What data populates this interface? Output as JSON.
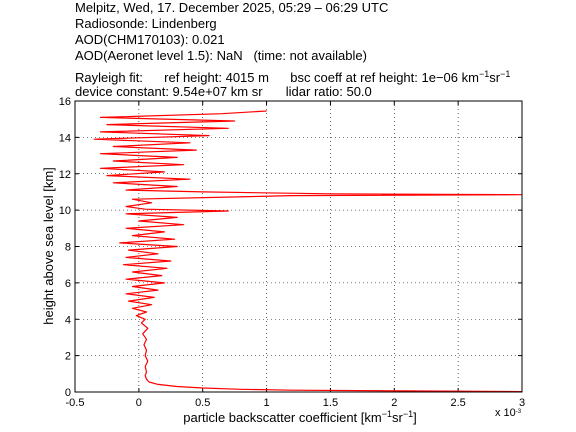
{
  "header": {
    "line1": "Melpitz, Wed, 17. December 2025, 05:29 – 06:29 UTC",
    "line2": "Radiosonde: Lindenberg",
    "line3": "AOD(CHM170103): 0.021",
    "line4": "AOD(Aeronet level 1.5): NaN   (time: not available)",
    "rayleigh_label": "Rayleigh fit:",
    "ref_height": "ref height: 4015 m",
    "bsc_coeff_prefix": "bsc coeff at ref height: 1e−06 km",
    "unit_sup1": "−1",
    "unit_sr": "sr",
    "unit_sup2": "−1",
    "device_constant": "device constant: 9.54e+07 km sr",
    "lidar_ratio": "lidar ratio: 50.0"
  },
  "chart_data": {
    "type": "line",
    "title": "",
    "xlabel_prefix": "particle backscatter coefficient [km",
    "xlabel_sup1": "−1",
    "xlabel_mid": "sr",
    "xlabel_sup2": "−1",
    "xlabel_suffix": "]",
    "x_multiplier_label": "x 10",
    "x_multiplier_exp": "-3",
    "ylabel": "height above sea level [km]",
    "xlim": [
      -0.5,
      3
    ],
    "ylim": [
      0,
      16
    ],
    "x_ticks": [
      "-0.5",
      "0",
      "0.5",
      "1",
      "1.5",
      "2",
      "2.5",
      "3"
    ],
    "y_ticks": [
      "0",
      "2",
      "4",
      "6",
      "8",
      "10",
      "12",
      "14",
      "16"
    ],
    "grid": true,
    "line_color": "#ff0000",
    "series": [
      {
        "x_units": "1e-3 km^-1 sr^-1",
        "y_units": "km",
        "points": [
          [
            3.0,
            0.02
          ],
          [
            1.2,
            0.1
          ],
          [
            0.8,
            0.15
          ],
          [
            0.5,
            0.22
          ],
          [
            0.3,
            0.3
          ],
          [
            0.15,
            0.42
          ],
          [
            0.08,
            0.55
          ],
          [
            0.06,
            0.7
          ],
          [
            0.05,
            0.9
          ],
          [
            0.06,
            1.1
          ],
          [
            0.05,
            1.4
          ],
          [
            0.07,
            1.7
          ],
          [
            0.05,
            2.0
          ],
          [
            0.06,
            2.3
          ],
          [
            0.04,
            2.6
          ],
          [
            0.06,
            2.9
          ],
          [
            0.03,
            3.2
          ],
          [
            0.07,
            3.5
          ],
          [
            0.02,
            3.8
          ],
          [
            0.05,
            4.0
          ],
          [
            -0.02,
            4.2
          ],
          [
            0.06,
            4.4
          ],
          [
            -0.05,
            4.6
          ],
          [
            0.1,
            4.8
          ],
          [
            -0.08,
            5.0
          ],
          [
            0.12,
            5.2
          ],
          [
            -0.1,
            5.4
          ],
          [
            0.15,
            5.6
          ],
          [
            -0.05,
            5.8
          ],
          [
            0.2,
            6.0
          ],
          [
            -0.1,
            6.2
          ],
          [
            0.18,
            6.4
          ],
          [
            -0.05,
            6.6
          ],
          [
            0.22,
            6.8
          ],
          [
            -0.12,
            7.0
          ],
          [
            0.25,
            7.2
          ],
          [
            -0.1,
            7.4
          ],
          [
            0.15,
            7.6
          ],
          [
            -0.08,
            7.8
          ],
          [
            0.3,
            8.0
          ],
          [
            -0.15,
            8.2
          ],
          [
            0.28,
            8.4
          ],
          [
            -0.05,
            8.6
          ],
          [
            0.2,
            8.8
          ],
          [
            -0.1,
            9.0
          ],
          [
            0.35,
            9.2
          ],
          [
            0.0,
            9.4
          ],
          [
            0.3,
            9.6
          ],
          [
            -0.1,
            9.8
          ],
          [
            0.7,
            9.95
          ],
          [
            0.05,
            10.05
          ],
          [
            -0.1,
            10.2
          ],
          [
            0.1,
            10.4
          ],
          [
            -0.05,
            10.6
          ],
          [
            0.6,
            10.7
          ],
          [
            1.2,
            10.8
          ],
          [
            3.0,
            10.85
          ],
          [
            1.5,
            10.9
          ],
          [
            0.5,
            11.0
          ],
          [
            -0.1,
            11.1
          ],
          [
            0.3,
            11.3
          ],
          [
            -0.2,
            11.5
          ],
          [
            0.4,
            11.7
          ],
          [
            -0.25,
            11.9
          ],
          [
            0.2,
            12.1
          ],
          [
            -0.3,
            12.3
          ],
          [
            0.35,
            12.5
          ],
          [
            -0.2,
            12.7
          ],
          [
            0.3,
            12.9
          ],
          [
            -0.3,
            13.1
          ],
          [
            0.45,
            13.3
          ],
          [
            -0.2,
            13.5
          ],
          [
            0.4,
            13.7
          ],
          [
            -0.35,
            13.9
          ],
          [
            0.55,
            14.1
          ],
          [
            -0.3,
            14.3
          ],
          [
            0.7,
            14.5
          ],
          [
            -0.25,
            14.7
          ],
          [
            0.75,
            14.9
          ],
          [
            -0.3,
            15.1
          ],
          [
            0.65,
            15.3
          ],
          [
            1.0,
            15.45
          ]
        ]
      }
    ]
  }
}
